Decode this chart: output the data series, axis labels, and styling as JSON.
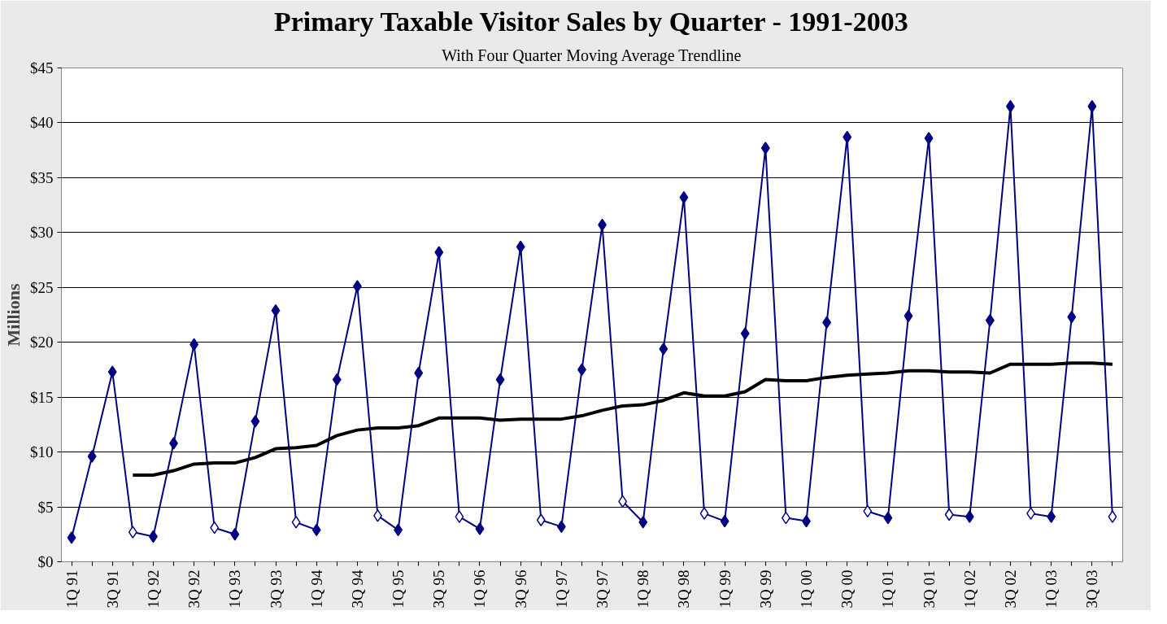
{
  "chart_data": {
    "type": "line",
    "title": "Primary Taxable Visitor Sales by Quarter - 1991-2003",
    "subtitle": "With Four Quarter Moving Average Trendline",
    "ylabel": "Millions",
    "categories": [
      "1Q 91",
      null,
      "3Q 91",
      null,
      "1Q 92",
      null,
      "3Q 92",
      null,
      "1Q 93",
      null,
      "3Q 93",
      null,
      "1Q 94",
      null,
      "3Q 94",
      null,
      "1Q 95",
      null,
      "3Q 95",
      null,
      "1Q 96",
      null,
      "3Q 96",
      null,
      "1Q 97",
      null,
      "3Q 97",
      null,
      "1Q 98",
      null,
      "3Q 98",
      null,
      "1Q 99",
      null,
      "3Q 99",
      null,
      "1Q 00",
      null,
      "3Q 00",
      null,
      "1Q 01",
      null,
      "3Q 01",
      null,
      "1Q 02",
      null,
      "3Q 02",
      null,
      "1Q 03",
      null,
      "3Q 03",
      null
    ],
    "series": [
      {
        "color": "#000080",
        "marker": "diamond",
        "colors": [
          "#000080",
          "#000080",
          "#000080",
          "#ffffff",
          "#000080",
          "#000080",
          "#000080",
          "#ffffff",
          "#000080",
          "#000080",
          "#000080",
          "#ffffff",
          "#000080",
          "#000080",
          "#000080",
          "#ffffff",
          "#000080",
          "#000080",
          "#000080",
          "#ffffff",
          "#000080",
          "#000080",
          "#000080",
          "#ffffff",
          "#000080",
          "#000080",
          "#000080",
          "#ffffff",
          "#000080",
          "#000080",
          "#000080",
          "#ffffff",
          "#000080",
          "#000080",
          "#000080",
          "#ffffff",
          "#000080",
          "#000080",
          "#000080",
          "#ffffff",
          "#000080",
          "#000080",
          "#000080",
          "#ffffff",
          "#000080",
          "#000080",
          "#000080",
          "#ffffff",
          "#000080",
          "#000080",
          "#000080",
          "#ffffff"
        ],
        "values": [
          2.2,
          9.6,
          17.3,
          2.7,
          2.3,
          10.8,
          19.8,
          3.1,
          2.5,
          12.8,
          22.9,
          3.6,
          2.9,
          16.6,
          25.1,
          4.2,
          2.9,
          17.2,
          28.2,
          4.1,
          3.0,
          16.6,
          28.7,
          3.8,
          3.2,
          17.5,
          30.7,
          5.5,
          3.6,
          19.4,
          33.2,
          4.4,
          3.7,
          20.8,
          37.7,
          4.0,
          3.7,
          21.8,
          38.7,
          4.6,
          4.0,
          22.4,
          38.6,
          4.3,
          4.1,
          22.0,
          41.5,
          4.4,
          4.1,
          22.3,
          41.5,
          4.1
        ]
      },
      {
        "color": "#000000",
        "marker": "none",
        "values": [
          null,
          null,
          null,
          7.9,
          7.9,
          8.3,
          8.9,
          9.0,
          9.0,
          9.5,
          10.3,
          10.4,
          10.6,
          11.5,
          12.0,
          12.2,
          12.2,
          12.4,
          13.1,
          13.1,
          13.1,
          12.9,
          13.0,
          13.0,
          13.0,
          13.3,
          13.8,
          14.2,
          14.3,
          14.7,
          15.4,
          15.1,
          15.1,
          15.5,
          16.6,
          16.5,
          16.5,
          16.8,
          17.0,
          17.1,
          17.2,
          17.4,
          17.4,
          17.3,
          17.3,
          17.2,
          18.0,
          18.0,
          18.0,
          18.1,
          18.1,
          18.0
        ]
      }
    ],
    "ylim": [
      0,
      45
    ],
    "yticks": [
      {
        "value": 0,
        "label": "$0"
      },
      {
        "value": 5,
        "label": "$5"
      },
      {
        "value": 10,
        "label": "$10"
      },
      {
        "value": 15,
        "label": "$15"
      },
      {
        "value": 20,
        "label": "$20"
      },
      {
        "value": 25,
        "label": "$25"
      },
      {
        "value": 30,
        "label": "$30"
      },
      {
        "value": 35,
        "label": "$35"
      },
      {
        "value": 40,
        "label": "$40"
      },
      {
        "value": 45,
        "label": "$45"
      }
    ],
    "grid": "y"
  }
}
